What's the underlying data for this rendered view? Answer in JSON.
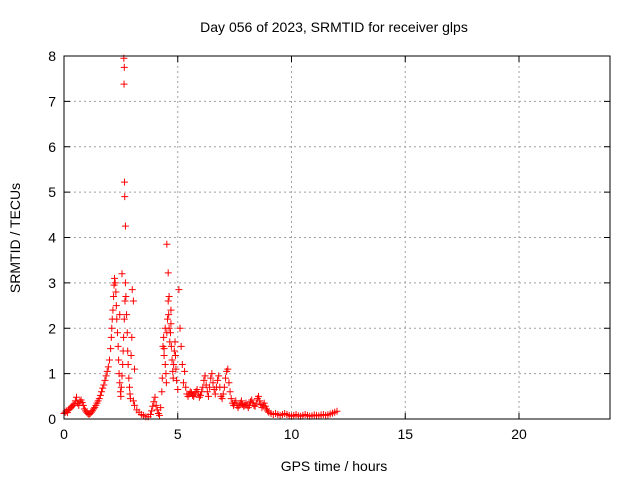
{
  "chart_data": {
    "type": "scatter",
    "title": "Day 056 of 2023, SRMTID for receiver glps",
    "xlabel": "GPS time / hours",
    "ylabel": "SRMTID / TECUs",
    "xlim": [
      0,
      24
    ],
    "ylim": [
      0,
      8
    ],
    "x_ticks": [
      0,
      5,
      10,
      15,
      20
    ],
    "x_tick_labels": [
      "0",
      "5",
      "10",
      "15",
      "20"
    ],
    "y_ticks": [
      0,
      1,
      2,
      3,
      4,
      5,
      6,
      7,
      8
    ],
    "y_tick_labels": [
      "0",
      "1",
      "2",
      "3",
      "4",
      "5",
      "6",
      "7",
      "8"
    ],
    "grid": true,
    "marker": "+",
    "color": "#ff0000",
    "series": [
      {
        "name": "SRMTID",
        "points": [
          [
            0.0,
            0.12
          ],
          [
            0.05,
            0.15
          ],
          [
            0.1,
            0.18
          ],
          [
            0.15,
            0.14
          ],
          [
            0.2,
            0.2
          ],
          [
            0.25,
            0.22
          ],
          [
            0.3,
            0.25
          ],
          [
            0.35,
            0.28
          ],
          [
            0.4,
            0.3
          ],
          [
            0.45,
            0.33
          ],
          [
            0.5,
            0.4
          ],
          [
            0.55,
            0.48
          ],
          [
            0.6,
            0.35
          ],
          [
            0.65,
            0.3
          ],
          [
            0.7,
            0.38
          ],
          [
            0.75,
            0.42
          ],
          [
            0.8,
            0.36
          ],
          [
            0.85,
            0.3
          ],
          [
            0.9,
            0.22
          ],
          [
            0.95,
            0.18
          ],
          [
            1.0,
            0.15
          ],
          [
            1.05,
            0.12
          ],
          [
            1.1,
            0.1
          ],
          [
            1.15,
            0.12
          ],
          [
            1.2,
            0.15
          ],
          [
            1.25,
            0.18
          ],
          [
            1.3,
            0.22
          ],
          [
            1.35,
            0.25
          ],
          [
            1.4,
            0.3
          ],
          [
            1.45,
            0.35
          ],
          [
            1.5,
            0.4
          ],
          [
            1.55,
            0.45
          ],
          [
            1.6,
            0.52
          ],
          [
            1.65,
            0.6
          ],
          [
            1.7,
            0.68
          ],
          [
            1.75,
            0.75
          ],
          [
            1.8,
            0.85
          ],
          [
            1.85,
            0.95
          ],
          [
            1.9,
            1.05
          ],
          [
            1.95,
            1.15
          ],
          [
            2.0,
            1.3
          ],
          [
            2.05,
            1.55
          ],
          [
            2.08,
            1.8
          ],
          [
            2.1,
            2.0
          ],
          [
            2.12,
            2.2
          ],
          [
            2.15,
            2.4
          ],
          [
            2.18,
            2.7
          ],
          [
            2.2,
            2.95
          ],
          [
            2.22,
            3.1
          ],
          [
            2.25,
            3.0
          ],
          [
            2.28,
            2.8
          ],
          [
            2.3,
            2.5
          ],
          [
            2.32,
            2.2
          ],
          [
            2.35,
            1.9
          ],
          [
            2.38,
            1.6
          ],
          [
            2.4,
            1.3
          ],
          [
            2.42,
            1.0
          ],
          [
            2.45,
            0.8
          ],
          [
            2.48,
            0.6
          ],
          [
            2.5,
            0.5
          ],
          [
            2.52,
            0.7
          ],
          [
            2.55,
            0.95
          ],
          [
            2.58,
            1.2
          ],
          [
            2.6,
            1.5
          ],
          [
            2.62,
            1.8
          ],
          [
            2.65,
            2.2
          ],
          [
            2.68,
            2.6
          ],
          [
            2.7,
            3.0
          ],
          [
            2.72,
            2.7
          ],
          [
            2.75,
            2.3
          ],
          [
            2.78,
            1.9
          ],
          [
            2.8,
            1.5
          ],
          [
            2.82,
            1.2
          ],
          [
            2.85,
            0.9
          ],
          [
            2.88,
            0.7
          ],
          [
            2.9,
            0.55
          ],
          [
            2.92,
            0.45
          ],
          [
            2.95,
            1.4
          ],
          [
            2.98,
            1.8
          ],
          [
            3.0,
            2.85
          ],
          [
            2.63,
            7.95
          ],
          [
            2.65,
            7.75
          ],
          [
            2.64,
            7.38
          ],
          [
            2.66,
            5.22
          ],
          [
            2.67,
            4.9
          ],
          [
            2.7,
            4.25
          ],
          [
            2.55,
            3.2
          ],
          [
            2.45,
            2.3
          ],
          [
            3.05,
            2.6
          ],
          [
            3.1,
            1.1
          ],
          [
            3.05,
            0.4
          ],
          [
            3.1,
            0.3
          ],
          [
            3.2,
            0.2
          ],
          [
            3.3,
            0.15
          ],
          [
            3.4,
            0.1
          ],
          [
            3.5,
            0.08
          ],
          [
            3.6,
            0.05
          ],
          [
            3.7,
            0.05
          ],
          [
            3.8,
            0.1
          ],
          [
            3.85,
            0.18
          ],
          [
            3.9,
            0.28
          ],
          [
            3.95,
            0.38
          ],
          [
            4.0,
            0.48
          ],
          [
            4.05,
            0.3
          ],
          [
            4.1,
            0.2
          ],
          [
            4.15,
            0.12
          ],
          [
            4.2,
            0.08
          ],
          [
            4.25,
            0.25
          ],
          [
            4.3,
            0.6
          ],
          [
            4.32,
            0.9
          ],
          [
            4.35,
            1.6
          ],
          [
            4.38,
            1.8
          ],
          [
            4.4,
            1.4
          ],
          [
            4.45,
            1.2
          ],
          [
            4.48,
            1.0
          ],
          [
            4.5,
            0.8
          ],
          [
            4.52,
            1.9
          ],
          [
            4.55,
            2.2
          ],
          [
            4.58,
            2.6
          ],
          [
            4.6,
            2.3
          ],
          [
            4.62,
            2.0
          ],
          [
            4.65,
            1.7
          ],
          [
            4.68,
            1.9
          ],
          [
            4.7,
            2.1
          ],
          [
            4.72,
            1.6
          ],
          [
            4.75,
            1.3
          ],
          [
            4.78,
            1.05
          ],
          [
            4.8,
            0.9
          ],
          [
            4.82,
            1.2
          ],
          [
            4.85,
            1.5
          ],
          [
            4.88,
            1.7
          ],
          [
            4.9,
            1.4
          ],
          [
            4.92,
            1.1
          ],
          [
            4.95,
            0.85
          ],
          [
            5.0,
            0.65
          ],
          [
            5.05,
            2.85
          ],
          [
            5.1,
            2.0
          ],
          [
            5.15,
            1.6
          ],
          [
            5.2,
            1.2
          ],
          [
            5.25,
            0.8
          ],
          [
            4.52,
            3.85
          ],
          [
            4.58,
            3.22
          ],
          [
            4.62,
            2.7
          ],
          [
            4.7,
            2.4
          ],
          [
            4.45,
            2.0
          ],
          [
            4.4,
            1.55
          ],
          [
            5.3,
            1.05
          ],
          [
            5.35,
            0.7
          ],
          [
            5.4,
            0.55
          ],
          [
            5.45,
            0.5
          ],
          [
            5.5,
            0.55
          ],
          [
            5.55,
            0.6
          ],
          [
            5.6,
            0.58
          ],
          [
            5.65,
            0.52
          ],
          [
            5.7,
            0.5
          ],
          [
            5.75,
            0.55
          ],
          [
            5.8,
            0.6
          ],
          [
            5.85,
            0.65
          ],
          [
            5.9,
            0.55
          ],
          [
            5.95,
            0.48
          ],
          [
            6.0,
            0.52
          ],
          [
            6.05,
            0.6
          ],
          [
            6.1,
            0.7
          ],
          [
            6.15,
            0.85
          ],
          [
            6.2,
            0.95
          ],
          [
            6.25,
            0.75
          ],
          [
            6.3,
            0.6
          ],
          [
            6.35,
            0.5
          ],
          [
            6.4,
            0.7
          ],
          [
            6.45,
            0.9
          ],
          [
            6.5,
            1.0
          ],
          [
            6.55,
            0.8
          ],
          [
            6.6,
            0.65
          ],
          [
            6.65,
            0.55
          ],
          [
            6.7,
            0.7
          ],
          [
            6.75,
            0.85
          ],
          [
            6.8,
            0.95
          ],
          [
            6.85,
            0.7
          ],
          [
            6.9,
            0.5
          ],
          [
            6.95,
            0.45
          ],
          [
            7.0,
            0.55
          ],
          [
            7.05,
            0.7
          ],
          [
            7.1,
            0.9
          ],
          [
            7.15,
            1.05
          ],
          [
            7.2,
            1.1
          ],
          [
            7.25,
            0.8
          ],
          [
            7.3,
            0.6
          ],
          [
            7.35,
            0.45
          ],
          [
            7.4,
            0.35
          ],
          [
            7.45,
            0.3
          ],
          [
            7.5,
            0.35
          ],
          [
            7.55,
            0.4
          ],
          [
            7.6,
            0.3
          ],
          [
            7.65,
            0.25
          ],
          [
            7.7,
            0.3
          ],
          [
            7.75,
            0.35
          ],
          [
            7.8,
            0.4
          ],
          [
            7.85,
            0.32
          ],
          [
            7.9,
            0.28
          ],
          [
            7.95,
            0.3
          ],
          [
            8.0,
            0.35
          ],
          [
            8.05,
            0.3
          ],
          [
            8.1,
            0.25
          ],
          [
            8.15,
            0.3
          ],
          [
            8.2,
            0.38
          ],
          [
            8.25,
            0.42
          ],
          [
            8.3,
            0.35
          ],
          [
            8.35,
            0.3
          ],
          [
            8.4,
            0.28
          ],
          [
            8.45,
            0.35
          ],
          [
            8.5,
            0.45
          ],
          [
            8.55,
            0.5
          ],
          [
            8.6,
            0.4
          ],
          [
            8.65,
            0.32
          ],
          [
            8.7,
            0.25
          ],
          [
            8.75,
            0.3
          ],
          [
            8.8,
            0.35
          ],
          [
            8.85,
            0.28
          ],
          [
            8.9,
            0.22
          ],
          [
            8.95,
            0.18
          ],
          [
            9.0,
            0.15
          ],
          [
            9.1,
            0.12
          ],
          [
            9.2,
            0.1
          ],
          [
            9.3,
            0.12
          ],
          [
            9.4,
            0.1
          ],
          [
            9.5,
            0.08
          ],
          [
            9.6,
            0.1
          ],
          [
            9.7,
            0.12
          ],
          [
            9.8,
            0.1
          ],
          [
            9.9,
            0.08
          ],
          [
            10.0,
            0.06
          ],
          [
            10.1,
            0.08
          ],
          [
            10.2,
            0.1
          ],
          [
            10.3,
            0.07
          ],
          [
            10.4,
            0.06
          ],
          [
            10.5,
            0.08
          ],
          [
            10.6,
            0.1
          ],
          [
            10.7,
            0.08
          ],
          [
            10.8,
            0.06
          ],
          [
            10.9,
            0.07
          ],
          [
            11.0,
            0.09
          ],
          [
            11.1,
            0.08
          ],
          [
            11.2,
            0.07
          ],
          [
            11.3,
            0.09
          ],
          [
            11.4,
            0.1
          ],
          [
            11.5,
            0.08
          ],
          [
            11.6,
            0.09
          ],
          [
            11.7,
            0.11
          ],
          [
            11.8,
            0.13
          ],
          [
            11.9,
            0.15
          ],
          [
            12.0,
            0.17
          ]
        ]
      }
    ]
  }
}
